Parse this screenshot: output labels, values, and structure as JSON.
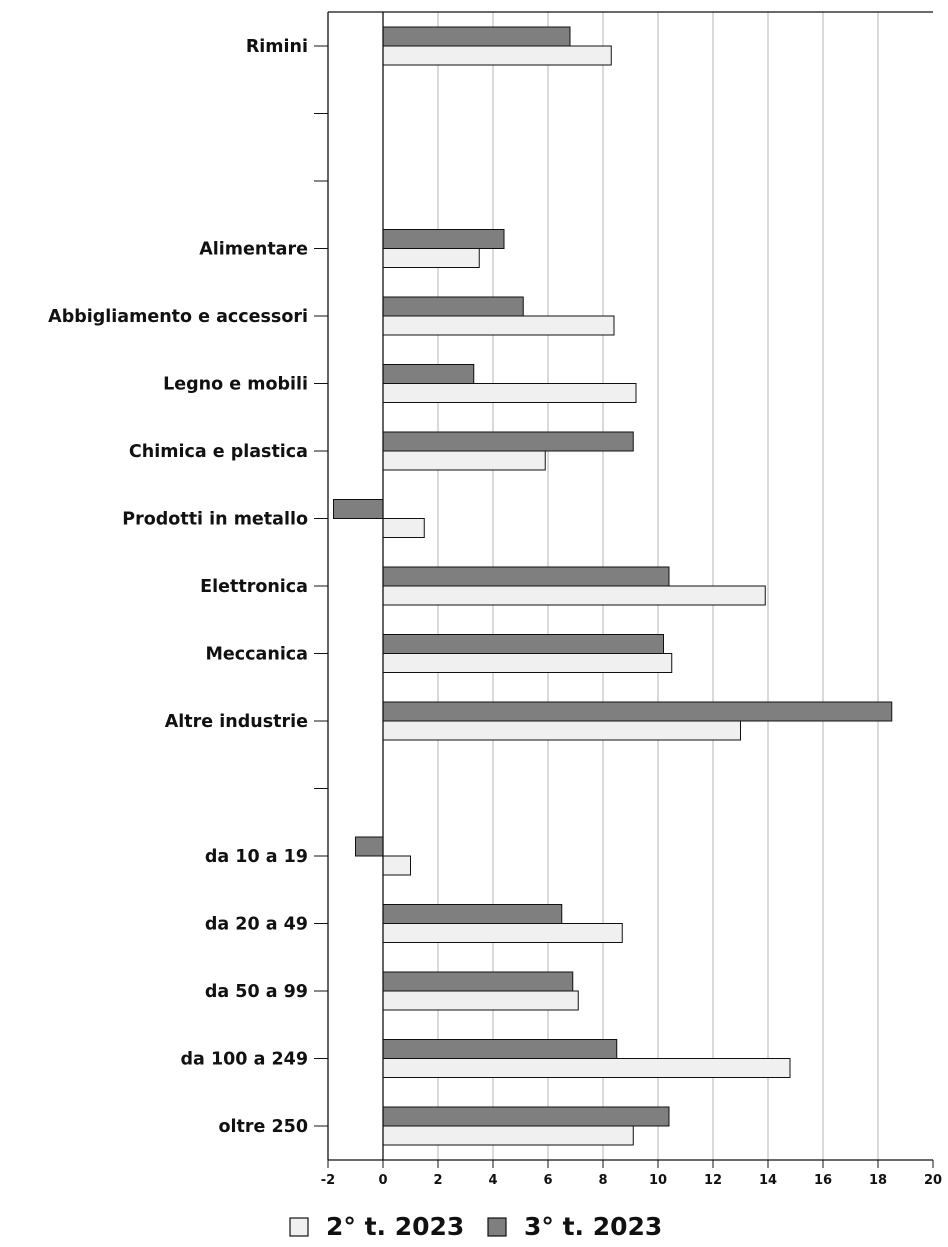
{
  "chart_data": {
    "type": "bar",
    "orientation": "horizontal",
    "title": "",
    "xlabel": "",
    "ylabel": "",
    "xlim": [
      -2,
      20
    ],
    "xticks": [
      -2,
      0,
      2,
      4,
      6,
      8,
      10,
      12,
      14,
      16,
      18,
      20
    ],
    "grid": true,
    "legend_position": "bottom",
    "categories": [
      "Rimini",
      "",
      "",
      "Alimentare",
      "Abbigliamento e accessori",
      "Legno e mobili",
      "Chimica e plastica",
      "Prodotti in metallo",
      "Elettronica",
      "Meccanica",
      "Altre industrie",
      "",
      "da 10 a 19",
      "da 20 a 49",
      "da 50 a 99",
      "da 100 a 249",
      "oltre 250"
    ],
    "series": [
      {
        "name": "2° t. 2023",
        "color": "#f0f0f0",
        "values": [
          8.3,
          null,
          null,
          3.5,
          8.4,
          9.2,
          5.9,
          1.5,
          13.9,
          10.5,
          13.0,
          null,
          1.0,
          8.7,
          7.1,
          14.8,
          9.1
        ]
      },
      {
        "name": "3° t. 2023",
        "color": "#7f7f7f",
        "values": [
          6.8,
          null,
          null,
          4.4,
          5.1,
          3.3,
          9.1,
          -1.8,
          10.4,
          10.2,
          18.5,
          null,
          -1.0,
          6.5,
          6.9,
          8.5,
          10.4
        ]
      }
    ]
  }
}
